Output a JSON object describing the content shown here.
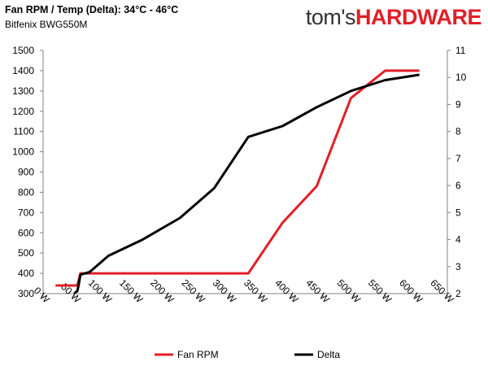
{
  "header": {
    "title": "Fan RPM / Temp (Delta): 34°C - 46°C",
    "subtitle": "Bitfenix BWG550M"
  },
  "logo": {
    "part1": "tom's",
    "part2": "HARDWARE",
    "color1": "#333333",
    "color2": "#e21f27"
  },
  "chart_data": {
    "type": "line",
    "title": "Fan RPM / Temp (Delta): 34°C - 46°C",
    "subtitle": "Bitfenix BWG550M",
    "xlabel": "",
    "ylabel": "",
    "x_range": [
      0,
      650
    ],
    "x_ticks": [
      0,
      50,
      100,
      150,
      200,
      250,
      300,
      350,
      400,
      450,
      500,
      550,
      600,
      650
    ],
    "x_tick_suffix": " W",
    "y_left_range": [
      300,
      1500
    ],
    "y_left_ticks": [
      300,
      400,
      500,
      600,
      700,
      800,
      900,
      1000,
      1100,
      1200,
      1300,
      1400,
      1500
    ],
    "y_right_range": [
      2,
      11
    ],
    "y_right_ticks": [
      2,
      3,
      4,
      5,
      6,
      7,
      8,
      9,
      10,
      11
    ],
    "grid": false,
    "legend_position": "bottom",
    "series": [
      {
        "name": "Fan RPM",
        "axis": "left",
        "color": "#e21f27",
        "x": [
          20,
          55,
          60,
          110,
          330,
          385,
          440,
          495,
          550,
          605
        ],
        "values": [
          340,
          340,
          400,
          400,
          400,
          650,
          830,
          1265,
          1400,
          1400
        ]
      },
      {
        "name": "Delta",
        "axis": "right",
        "color": "#000000",
        "x": [
          50,
          55,
          57,
          60,
          75,
          105,
          160,
          220,
          275,
          330,
          385,
          440,
          495,
          550,
          605
        ],
        "values": [
          2.0,
          2.1,
          2.3,
          2.7,
          2.8,
          3.4,
          4.0,
          4.8,
          5.9,
          7.8,
          8.2,
          8.9,
          9.5,
          9.9,
          10.1
        ]
      }
    ]
  }
}
